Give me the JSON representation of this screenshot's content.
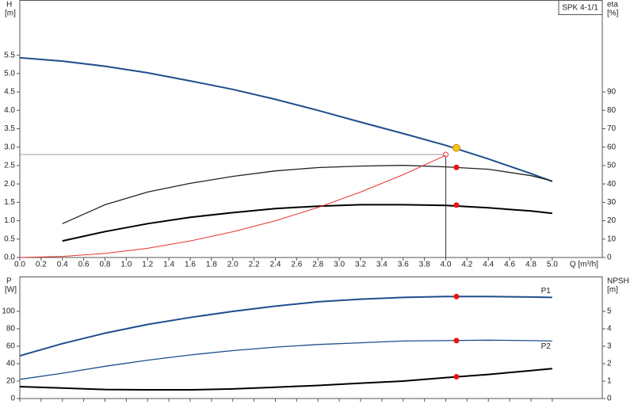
{
  "chart_data": [
    {
      "type": "line",
      "tag": "SPK 4-1/1",
      "ylabel": "H",
      "yunit": "[m]",
      "y2label": "eta",
      "y2unit": "[%]",
      "xlabel": "Q [m³/h]",
      "xlim": [
        0,
        5.47
      ],
      "ylim": [
        0,
        7
      ],
      "y2lim": [
        0,
        140
      ],
      "xticks": [
        {
          "value": 0,
          "label": "0.0"
        },
        {
          "value": 0.2,
          "label": "0.2"
        },
        {
          "value": 0.4,
          "label": "0.4"
        },
        {
          "value": 0.6,
          "label": "0.6"
        },
        {
          "value": 0.8,
          "label": "0.8"
        },
        {
          "value": 1,
          "label": "1.0"
        },
        {
          "value": 1.2,
          "label": "1.2"
        },
        {
          "value": 1.4,
          "label": "1.4"
        },
        {
          "value": 1.6,
          "label": "1.6"
        },
        {
          "value": 1.8,
          "label": "1.8"
        },
        {
          "value": 2,
          "label": "2.0"
        },
        {
          "value": 2.2,
          "label": "2.2"
        },
        {
          "value": 2.4,
          "label": "2.4"
        },
        {
          "value": 2.6,
          "label": "2.6"
        },
        {
          "value": 2.8,
          "label": "2.8"
        },
        {
          "value": 3,
          "label": "3.0"
        },
        {
          "value": 3.2,
          "label": "3.2"
        },
        {
          "value": 3.4,
          "label": "3.4"
        },
        {
          "value": 3.6,
          "label": "3.6"
        },
        {
          "value": 3.8,
          "label": "3.8"
        },
        {
          "value": 4,
          "label": "4.0"
        },
        {
          "value": 4.2,
          "label": "4.2"
        },
        {
          "value": 4.4,
          "label": "4.4"
        },
        {
          "value": 4.6,
          "label": "4.6"
        },
        {
          "value": 4.8,
          "label": "4.8"
        },
        {
          "value": 5,
          "label": "5.0"
        }
      ],
      "yticks": [
        {
          "value": 0,
          "label": "0.0"
        },
        {
          "value": 0.5,
          "label": "0.5"
        },
        {
          "value": 1,
          "label": "1.0"
        },
        {
          "value": 1.5,
          "label": "1.5"
        },
        {
          "value": 2,
          "label": "2.0"
        },
        {
          "value": 2.5,
          "label": "2.5"
        },
        {
          "value": 3,
          "label": "3.0"
        },
        {
          "value": 3.5,
          "label": "3.5"
        },
        {
          "value": 4,
          "label": "4.0"
        },
        {
          "value": 4.5,
          "label": "4.5"
        },
        {
          "value": 5,
          "label": "5.0"
        },
        {
          "value": 5.5,
          "label": "5.5"
        }
      ],
      "y2ticks": [
        0,
        10,
        20,
        30,
        40,
        50,
        60,
        70,
        80,
        90
      ],
      "x": [
        0,
        0.4,
        0.8,
        1.2,
        1.6,
        2.0,
        2.4,
        2.8,
        3.2,
        3.6,
        4.0,
        4.4,
        4.8,
        5.0
      ],
      "series": [
        {
          "color": "#1f4e8c",
          "width": 2,
          "values": [
            5.43,
            5.34,
            5.2,
            5.02,
            4.8,
            4.57,
            4.3,
            4.0,
            3.68,
            3.37,
            3.05,
            2.68,
            2.28,
            2.07
          ]
        },
        {
          "color": "#222222",
          "width": 1.3,
          "axis": "y2",
          "values": [
            null,
            18.4,
            28.7,
            35.6,
            40.3,
            44.1,
            47.1,
            48.9,
            49.7,
            50.1,
            49.3,
            48.0,
            44.5,
            41.6
          ]
        },
        {
          "color": "#000000",
          "width": 2,
          "axis": "y2",
          "values": [
            null,
            9,
            14.1,
            18.4,
            21.9,
            24.4,
            26.6,
            27.9,
            28.7,
            28.7,
            28.3,
            27,
            25.3,
            24
          ]
        },
        {
          "color": "#e8352e",
          "width": 1,
          "values": [
            0,
            0.03,
            0.11,
            0.25,
            0.45,
            0.7,
            1.0,
            1.36,
            1.78,
            2.25,
            2.78,
            null,
            null,
            null
          ]
        }
      ],
      "guide": {
        "x": 4.0,
        "y": 2.8
      },
      "points": [
        {
          "x": 4.1,
          "y": 2.98,
          "color": "#f5c518"
        },
        {
          "x": 4.1,
          "y": 49,
          "axis": "y2",
          "color": "#ee1111"
        },
        {
          "x": 4.1,
          "y": 28.5,
          "axis": "y2",
          "color": "#ee1111"
        }
      ]
    },
    {
      "type": "line",
      "ylabel": "P",
      "yunit": "[W]",
      "y2label": "NPSH",
      "y2unit": "[m]",
      "xlim": [
        0,
        5.47
      ],
      "ylim": [
        0,
        140
      ],
      "y2lim": [
        0,
        7
      ],
      "xticks": [
        0,
        0.2,
        0.4,
        0.6,
        0.8,
        1,
        1.2,
        1.4,
        1.6,
        1.8,
        2,
        2.2,
        2.4,
        2.6,
        2.8,
        3,
        3.2,
        3.4,
        3.6,
        3.8,
        4,
        4.2,
        4.4,
        4.6,
        4.8,
        5
      ],
      "yticks": [
        0,
        20,
        40,
        60,
        80,
        100
      ],
      "y2ticks": [
        0,
        1,
        2,
        3,
        4,
        5
      ],
      "x": [
        0,
        0.4,
        0.8,
        1.2,
        1.6,
        2.0,
        2.4,
        2.8,
        3.2,
        3.6,
        4.0,
        4.4,
        4.8,
        5.0
      ],
      "series": [
        {
          "name": "P1",
          "color": "#1f4e8c",
          "width": 2,
          "values": [
            49,
            63,
            75,
            85,
            93,
            100,
            106,
            111,
            114,
            116,
            117,
            117,
            116.5,
            116
          ]
        },
        {
          "name": "P2",
          "color": "#1f4e8c",
          "width": 1.3,
          "values": [
            22,
            29,
            37,
            44,
            50,
            55,
            59,
            62,
            64,
            66,
            66.5,
            67,
            66.5,
            66
          ]
        },
        {
          "color": "#000000",
          "width": 2,
          "axis": "y2",
          "values": [
            0.68,
            0.6,
            0.52,
            0.5,
            0.5,
            0.55,
            0.65,
            0.75,
            0.88,
            1.0,
            1.2,
            1.38,
            1.6,
            1.72
          ]
        }
      ],
      "points": [
        {
          "x": 4.1,
          "y": 117,
          "color": "#ee1111"
        },
        {
          "x": 4.1,
          "y": 66.5,
          "color": "#ee1111"
        },
        {
          "x": 4.1,
          "y": 1.25,
          "axis": "y2",
          "color": "#ee1111"
        }
      ]
    }
  ]
}
